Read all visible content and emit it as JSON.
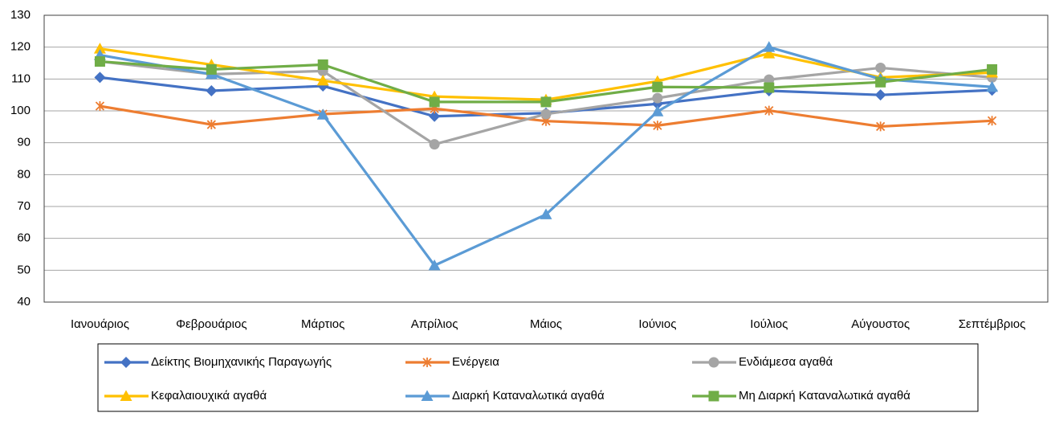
{
  "chart_data": {
    "type": "line",
    "categories": [
      "Ιανουάριος",
      "Φεβρουάριος",
      "Μάρτιος",
      "Απρίλιος",
      "Μάιος",
      "Ιούνιος",
      "Ιούλιος",
      "Αύγουστος",
      "Σεπτέμβριος"
    ],
    "series": [
      {
        "name": "Δείκτης Βιομηχανικής Παραγωγής",
        "color": "#4472c4",
        "marker": "diamond",
        "values": [
          110.5,
          106.3,
          107.8,
          98.3,
          99.3,
          102.2,
          106.3,
          105.0,
          106.5
        ]
      },
      {
        "name": "Ενέργεια",
        "color": "#ed7d31",
        "marker": "asterisk",
        "values": [
          101.5,
          95.7,
          99.0,
          100.7,
          96.8,
          95.4,
          100.1,
          95.1,
          96.9
        ]
      },
      {
        "name": "Ενδιάμεσα αγαθά",
        "color": "#a5a5a5",
        "marker": "circle",
        "values": [
          115.5,
          111.5,
          112.5,
          89.5,
          99.0,
          104.0,
          109.8,
          113.5,
          110.5
        ]
      },
      {
        "name": "Κεφαλαιουχικά αγαθά",
        "color": "#ffc000",
        "marker": "triangle",
        "values": [
          119.5,
          114.5,
          109.5,
          104.5,
          103.5,
          109.3,
          118.0,
          110.5,
          112.0
        ]
      },
      {
        "name": "Διαρκή Καταναλωτικά αγαθά",
        "color": "#5b9bd5",
        "marker": "triangle",
        "values": [
          117.5,
          111.5,
          98.8,
          51.5,
          67.5,
          99.8,
          120.0,
          110.0,
          107.5
        ]
      },
      {
        "name": "Μη Διαρκή Καταναλωτικά αγαθά",
        "color": "#70ad47",
        "marker": "square",
        "values": [
          115.5,
          113.0,
          114.5,
          102.8,
          102.8,
          107.5,
          107.3,
          109.0,
          113.0
        ]
      }
    ],
    "ylim": [
      40,
      130
    ],
    "yticks": [
      40,
      50,
      60,
      70,
      80,
      90,
      100,
      110,
      120,
      130
    ],
    "grid": true,
    "legend": "bottom"
  }
}
